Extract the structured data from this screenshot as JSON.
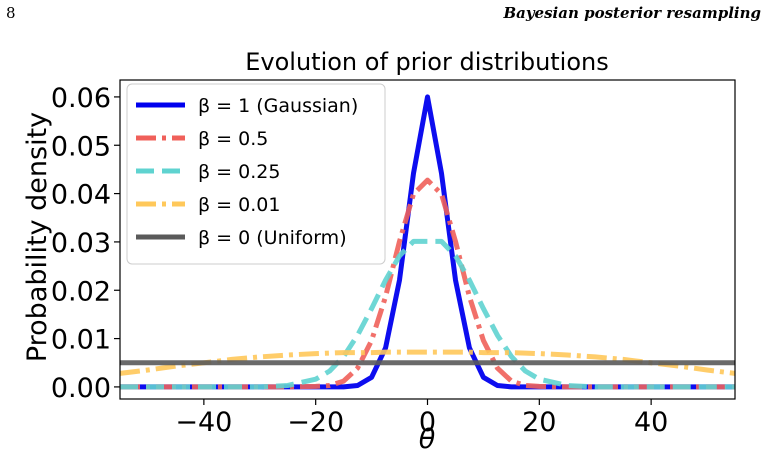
{
  "header": {
    "page_number": "8",
    "running_title": "Bayesian posterior resampling"
  },
  "chart_data": {
    "type": "line",
    "title": "Evolution of prior distributions",
    "xlabel": "θ",
    "ylabel": "Probability density",
    "xlim": [
      -55,
      55
    ],
    "ylim": [
      -0.0025,
      0.0635
    ],
    "xticks": [
      -40,
      -20,
      0,
      20,
      40
    ],
    "xtick_labels": [
      "−40",
      "−20",
      "0",
      "20",
      "40"
    ],
    "yticks": [
      0.0,
      0.01,
      0.02,
      0.03,
      0.04,
      0.05,
      0.06
    ],
    "ytick_labels": [
      "0.00",
      "0.01",
      "0.02",
      "0.03",
      "0.04",
      "0.05",
      "0.06"
    ],
    "grid": false,
    "legend_position": "upper-left",
    "x": [
      -55,
      -50,
      -45,
      -40,
      -35,
      -30,
      -25,
      -20,
      -17.5,
      -15,
      -12.5,
      -10,
      -7.5,
      -5,
      -2.5,
      0,
      2.5,
      5,
      7.5,
      10,
      12.5,
      15,
      17.5,
      20,
      25,
      30,
      35,
      40,
      45,
      50,
      55
    ],
    "series": [
      {
        "name": "β = 1 (Gaussian)",
        "color": "#0000ee",
        "dash": "solid",
        "values": [
          0,
          0,
          0,
          0,
          0,
          0,
          0,
          0,
          0,
          0,
          0.0003,
          0.002,
          0.0081,
          0.0221,
          0.0442,
          0.06,
          0.0442,
          0.0221,
          0.0081,
          0.002,
          0.0003,
          0,
          0,
          0,
          0,
          0,
          0,
          0,
          0,
          0,
          0
        ]
      },
      {
        "name": "β = 0.5",
        "color": "#f0605a",
        "dash": "dashdot",
        "values": [
          0,
          0,
          0,
          0,
          0,
          0,
          0,
          0.0001,
          0.0003,
          0.0012,
          0.0039,
          0.0096,
          0.0187,
          0.0301,
          0.0399,
          0.0428,
          0.0399,
          0.0301,
          0.0187,
          0.0096,
          0.0039,
          0.0012,
          0.0003,
          0.0001,
          0,
          0,
          0,
          0,
          0,
          0,
          0
        ]
      },
      {
        "name": "β = 0.25",
        "color": "#5fd3d0",
        "dash": "dashed",
        "values": [
          0,
          0,
          0,
          0,
          0,
          0,
          0.0003,
          0.0016,
          0.0033,
          0.0063,
          0.0107,
          0.0162,
          0.0221,
          0.0271,
          0.0301,
          0.0301,
          0.0301,
          0.0271,
          0.0221,
          0.0162,
          0.0107,
          0.0063,
          0.0033,
          0.0016,
          0.0003,
          0,
          0,
          0,
          0,
          0,
          0
        ]
      },
      {
        "name": "β = 0.01",
        "color": "#ffc85a",
        "dash": "dashdot",
        "values": [
          0.0028,
          0.0035,
          0.0043,
          0.005,
          0.0057,
          0.0062,
          0.0066,
          0.0069,
          0.007,
          0.0071,
          0.0071,
          0.0071,
          0.0072,
          0.0072,
          0.0072,
          0.0072,
          0.0072,
          0.0072,
          0.0072,
          0.0071,
          0.0071,
          0.0071,
          0.007,
          0.0069,
          0.0066,
          0.0062,
          0.0057,
          0.005,
          0.0043,
          0.0035,
          0.0028
        ]
      },
      {
        "name": "β = 0 (Uniform)",
        "color": "#5a5a5a",
        "dash": "solid",
        "values": [
          0.005,
          0.005,
          0.005,
          0.005,
          0.005,
          0.005,
          0.005,
          0.005,
          0.005,
          0.005,
          0.005,
          0.005,
          0.005,
          0.005,
          0.005,
          0.005,
          0.005,
          0.005,
          0.005,
          0.005,
          0.005,
          0.005,
          0.005,
          0.005,
          0.005,
          0.005,
          0.005,
          0.005,
          0.005,
          0.005,
          0.005
        ]
      }
    ]
  }
}
